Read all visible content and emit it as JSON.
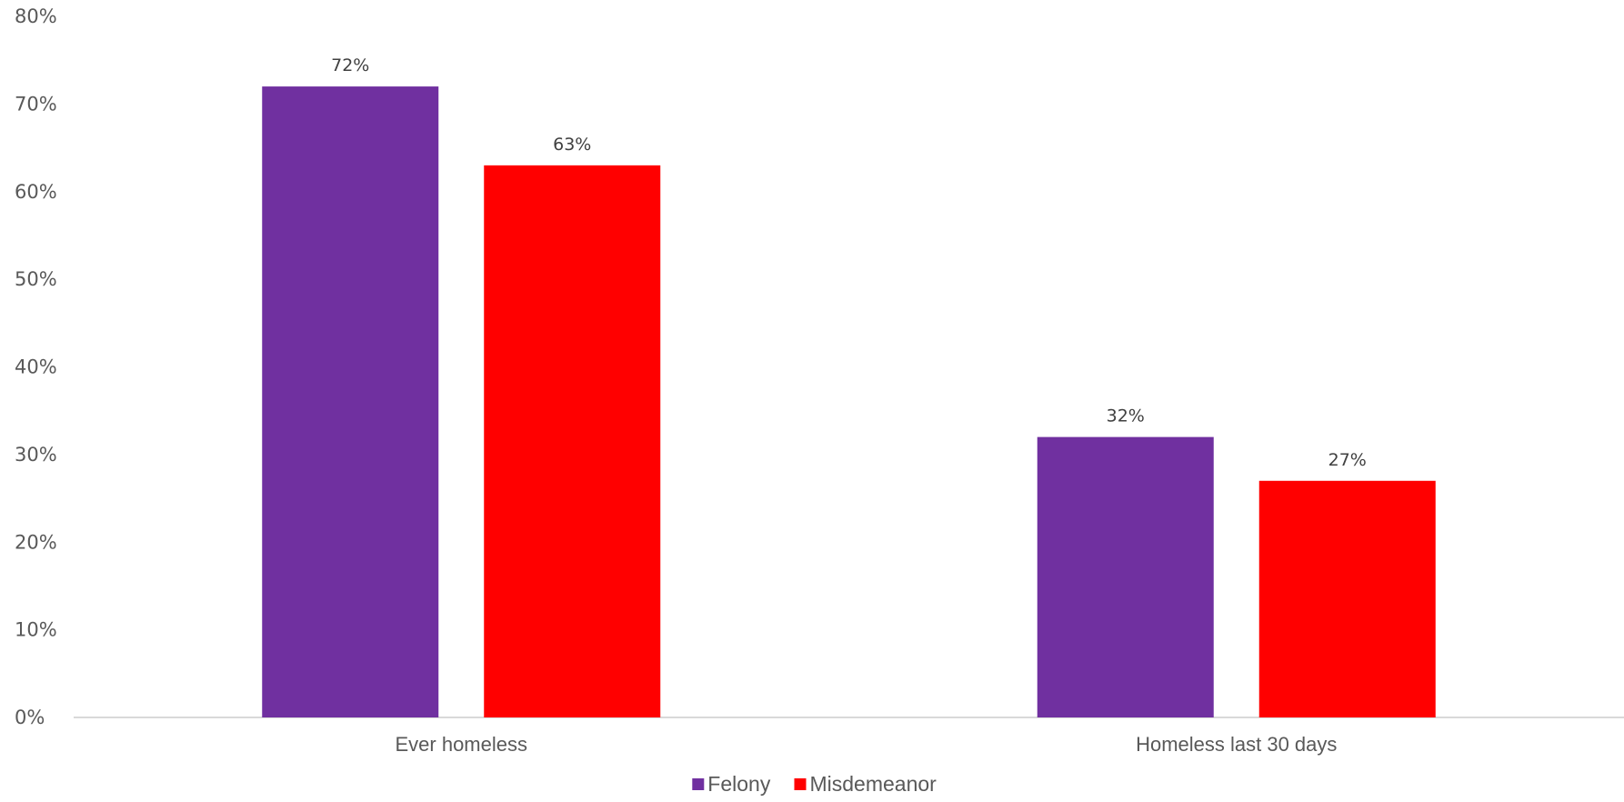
{
  "chart_data": {
    "type": "bar",
    "categories": [
      "Ever homeless",
      "Homeless last 30 days"
    ],
    "series": [
      {
        "name": "Felony",
        "values": [
          72,
          32
        ],
        "labels": [
          "72%",
          "32%"
        ],
        "color": "#7030A0"
      },
      {
        "name": "Misdemeanor",
        "values": [
          63,
          27
        ],
        "labels": [
          "63%",
          "27%"
        ],
        "color": "#FF0000"
      }
    ],
    "ylim": [
      0,
      80
    ],
    "yticks": [
      0,
      10,
      20,
      30,
      40,
      50,
      60,
      70,
      80
    ],
    "ytick_labels": [
      "0%",
      "10%",
      "20%",
      "30%",
      "40%",
      "50%",
      "60%",
      "70%",
      "80%"
    ],
    "legend": "bottom",
    "grid": false,
    "axis_color": "#D9D9D9"
  }
}
